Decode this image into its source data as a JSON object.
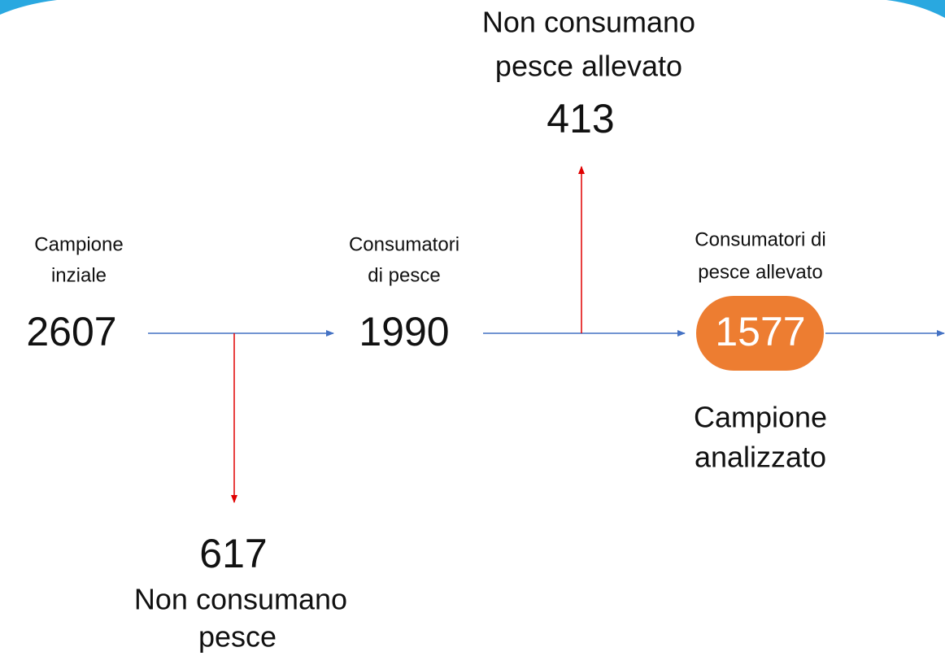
{
  "nodes": [
    {
      "label": [
        "Campione",
        "inziale"
      ],
      "value": 2607
    },
    {
      "label": [
        "Consumatori",
        "di pesce"
      ],
      "value": 1990
    },
    {
      "label": [
        "Consumatori di",
        "pesce allevato"
      ],
      "value": 1577,
      "caption": [
        "Campione",
        "analizzato"
      ]
    }
  ],
  "exclusions": [
    {
      "label": [
        "Non consumano",
        "pesce"
      ],
      "value": 617
    },
    {
      "label": [
        "Non consumano",
        "pesce allevato"
      ],
      "value": 413
    }
  ]
}
